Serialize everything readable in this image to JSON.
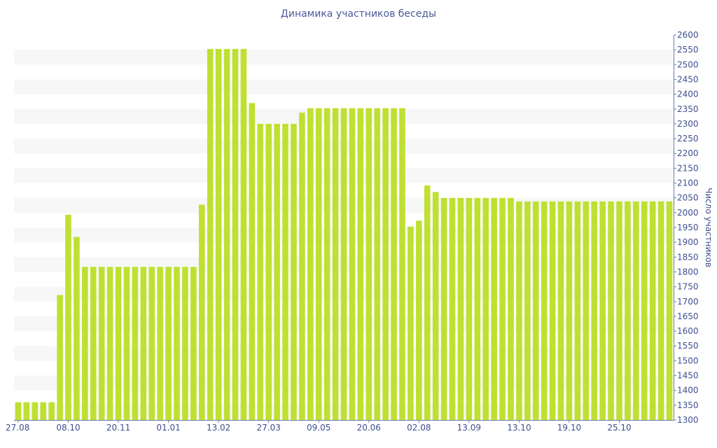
{
  "chart_data": {
    "type": "bar",
    "title": "Динамика участников беседы",
    "xlabel": "",
    "ylabel": "Число участников",
    "y_axis_side": "right",
    "ylim": [
      1300,
      2600
    ],
    "y_ticks": [
      1300,
      1350,
      1400,
      1450,
      1500,
      1550,
      1600,
      1650,
      1700,
      1750,
      1800,
      1850,
      1900,
      1950,
      2000,
      2050,
      2100,
      2150,
      2200,
      2250,
      2300,
      2350,
      2400,
      2450,
      2500,
      2550,
      2600
    ],
    "grid": "horizontal bands",
    "colors": {
      "bar": "#bfe031",
      "band": "#f7f7f7",
      "axis": "#6b7db0",
      "text": "#3e4f8e"
    },
    "x_tick_labels": [
      {
        "label": "27.08",
        "index": 0
      },
      {
        "label": "08.10",
        "index": 6
      },
      {
        "label": "20.11",
        "index": 12
      },
      {
        "label": "01.01",
        "index": 18
      },
      {
        "label": "13.02",
        "index": 24
      },
      {
        "label": "27.03",
        "index": 30
      },
      {
        "label": "09.05",
        "index": 36
      },
      {
        "label": "20.06",
        "index": 42
      },
      {
        "label": "02.08",
        "index": 48
      },
      {
        "label": "13.09",
        "index": 54
      },
      {
        "label": "13.10",
        "index": 60
      },
      {
        "label": "19.10",
        "index": 66
      },
      {
        "label": "25.10",
        "index": 72
      }
    ],
    "values": [
      1360,
      1360,
      1360,
      1360,
      1360,
      1722,
      1993,
      1918,
      1817,
      1817,
      1817,
      1817,
      1817,
      1817,
      1817,
      1817,
      1817,
      1817,
      1817,
      1817,
      1817,
      1817,
      2027,
      2553,
      2553,
      2553,
      2553,
      2553,
      2370,
      2300,
      2300,
      2300,
      2300,
      2300,
      2338,
      2353,
      2353,
      2353,
      2353,
      2353,
      2353,
      2353,
      2353,
      2353,
      2353,
      2353,
      2353,
      1953,
      1973,
      2092,
      2070,
      2050,
      2050,
      2050,
      2050,
      2050,
      2050,
      2050,
      2050,
      2050,
      2038,
      2038,
      2038,
      2038,
      2038,
      2038,
      2038,
      2038,
      2038,
      2038,
      2038,
      2038,
      2038,
      2038,
      2038,
      2038,
      2038,
      2038,
      2038
    ]
  }
}
